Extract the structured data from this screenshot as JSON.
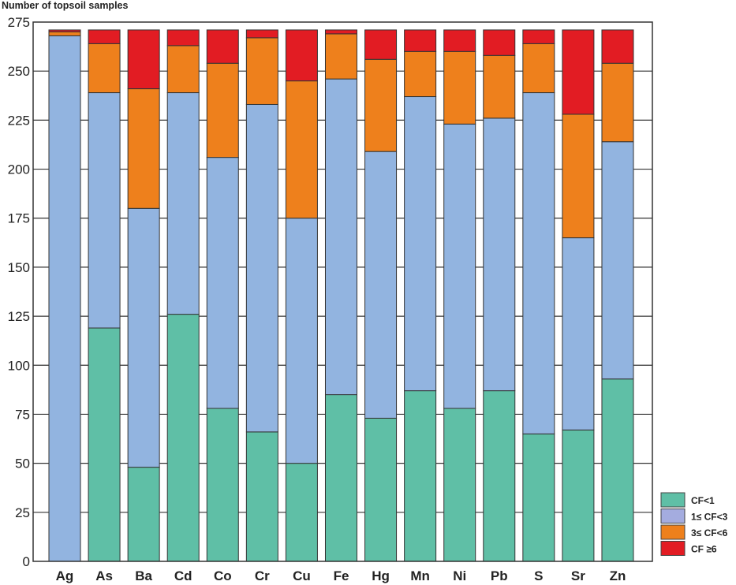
{
  "chart_data": {
    "type": "bar",
    "stacked": true,
    "title": "",
    "ylabel": "Number of topsoil samples",
    "xlabel": "",
    "ylim": [
      0,
      275
    ],
    "yticks": [
      0,
      25,
      50,
      75,
      100,
      125,
      150,
      175,
      200,
      225,
      250,
      275
    ],
    "grid": true,
    "legend_position": "bottom-right",
    "categories": [
      "Ag",
      "As",
      "Ba",
      "Cd",
      "Co",
      "Cr",
      "Cu",
      "Fe",
      "Hg",
      "Mn",
      "Ni",
      "Pb",
      "S",
      "Sr",
      "Zn"
    ],
    "series": [
      {
        "name": "CF<1",
        "color": "#5fbfa6",
        "values": [
          0,
          119,
          48,
          126,
          78,
          66,
          50,
          85,
          73,
          87,
          78,
          87,
          65,
          67,
          93
        ]
      },
      {
        "name": "1≤ CF<3",
        "color": "#92b4e0",
        "values": [
          268,
          120,
          132,
          113,
          128,
          167,
          125,
          161,
          136,
          150,
          145,
          139,
          174,
          98,
          121
        ]
      },
      {
        "name": "3≤ CF<6",
        "color": "#ee801c",
        "values": [
          2,
          25,
          61,
          24,
          48,
          34,
          70,
          23,
          47,
          23,
          37,
          32,
          25,
          63,
          40
        ]
      },
      {
        "name": "CF ≥6",
        "color": "#e21c23",
        "values": [
          1,
          7,
          30,
          8,
          17,
          4,
          26,
          2,
          15,
          11,
          11,
          13,
          7,
          43,
          17
        ]
      }
    ],
    "legend_swatch_colors": [
      "#5fbfa6",
      "#a4acdf",
      "#ee801c",
      "#e21c23"
    ]
  }
}
